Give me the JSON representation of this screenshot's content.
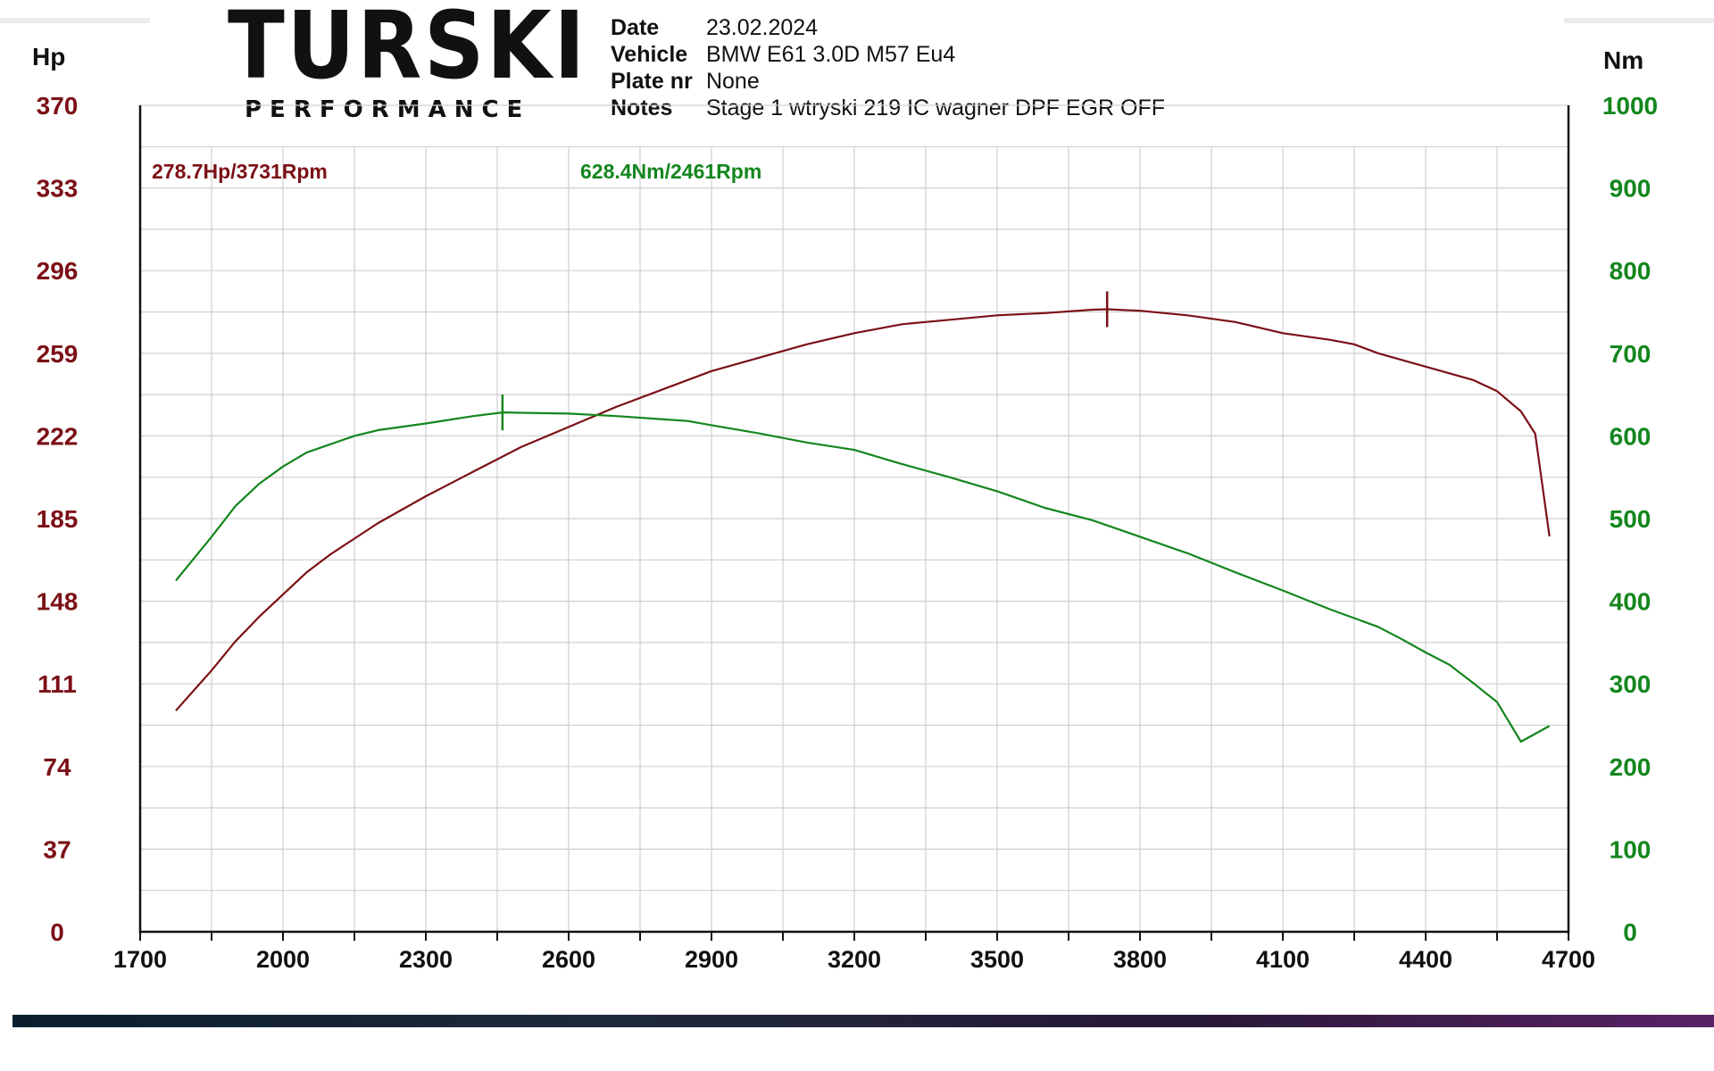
{
  "header": {
    "logo_main": "TURSKI",
    "logo_sub": "PERFORMANCE",
    "info": [
      {
        "key": "Date",
        "value": "23.02.2024"
      },
      {
        "key": "Vehicle",
        "value": "BMW E61 3.0D M57 Eu4"
      },
      {
        "key": "Plate nr",
        "value": "None"
      },
      {
        "key": "Notes",
        "value": "Stage 1 wtryski 219 IC wagner DPF EGR OFF"
      }
    ]
  },
  "colors": {
    "power": "#7b1016",
    "torque": "#14861e",
    "grid": "#cfcfcf",
    "axis": "#111111"
  },
  "chart_data": {
    "type": "line",
    "x_ticks": [
      "1700",
      "2000",
      "2300",
      "2600",
      "2900",
      "3200",
      "3500",
      "3800",
      "4100",
      "4400",
      "4700"
    ],
    "xlim": [
      1700,
      4700
    ],
    "grid": true,
    "axes": {
      "left": {
        "unit": "Hp",
        "ticks": [
          "0",
          "37",
          "74",
          "111",
          "148",
          "185",
          "222",
          "259",
          "296",
          "333",
          "370"
        ],
        "ylim": [
          0,
          370
        ]
      },
      "right": {
        "unit": "Nm",
        "ticks": [
          "0",
          "100",
          "200",
          "300",
          "400",
          "500",
          "600",
          "700",
          "800",
          "900",
          "1000"
        ],
        "ylim": [
          0,
          1000
        ]
      }
    },
    "series": [
      {
        "name": "Hp",
        "axis": "left",
        "color": "#7b1016",
        "x": [
          1775,
          1850,
          1900,
          1950,
          2000,
          2050,
          2100,
          2150,
          2200,
          2300,
          2400,
          2500,
          2600,
          2700,
          2800,
          2900,
          3000,
          3100,
          3200,
          3300,
          3400,
          3500,
          3600,
          3700,
          3731,
          3800,
          3900,
          4000,
          4100,
          4200,
          4250,
          4300,
          4400,
          4500,
          4550,
          4600,
          4630,
          4660
        ],
        "values": [
          99,
          117,
          130,
          141,
          151,
          161,
          169,
          176,
          183,
          195,
          206,
          217,
          226,
          235,
          243,
          251,
          257,
          263,
          268,
          272,
          274,
          276,
          277,
          278.5,
          278.7,
          278,
          276,
          273,
          268,
          265,
          263,
          259,
          253,
          247,
          242,
          233,
          223,
          177
        ],
        "peak": {
          "label": "278.7Hp/3731Rpm",
          "x": 3731,
          "y": 278.7
        }
      },
      {
        "name": "Nm",
        "axis": "right",
        "color": "#14861e",
        "x": [
          1775,
          1850,
          1900,
          1950,
          2000,
          2050,
          2100,
          2150,
          2200,
          2300,
          2400,
          2461,
          2500,
          2600,
          2700,
          2800,
          2850,
          2900,
          3000,
          3100,
          3200,
          3300,
          3400,
          3500,
          3600,
          3700,
          3800,
          3900,
          4000,
          4100,
          4200,
          4300,
          4350,
          4400,
          4450,
          4500,
          4550,
          4600,
          4660
        ],
        "values": [
          425,
          478,
          515,
          542,
          563,
          580,
          590,
          600,
          607,
          615,
          624,
          628.4,
          628,
          627,
          624,
          620,
          618,
          613,
          603,
          592,
          583,
          566,
          550,
          533,
          513,
          498,
          478,
          458,
          435,
          413,
          390,
          369,
          354,
          338,
          323,
          301,
          278,
          230,
          249
        ],
        "peak": {
          "label": "628.4Nm/2461Rpm",
          "x": 2461,
          "y": 628.4
        }
      }
    ]
  }
}
